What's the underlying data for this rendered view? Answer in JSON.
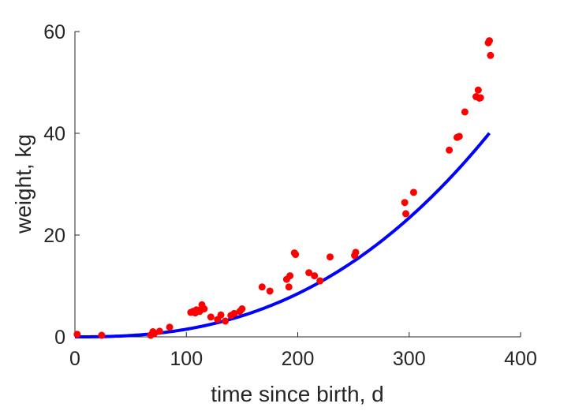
{
  "chart_data": {
    "type": "scatter",
    "title": "",
    "xlabel": "time since birth, d",
    "ylabel": "weight, kg",
    "xlim": [
      0,
      400
    ],
    "ylim": [
      0,
      60
    ],
    "xticks": [
      0,
      100,
      200,
      300,
      400
    ],
    "yticks": [
      0,
      20,
      40,
      60
    ],
    "grid": false,
    "colors": {
      "points": "#ff0000",
      "fit": "#0000ff",
      "axes": "#262626"
    },
    "fit": {
      "type": "power",
      "a": 1.5e-05,
      "b": 2.5,
      "x_range": [
        0,
        372
      ]
    },
    "series": [
      {
        "type": "scatter",
        "x": [
          2,
          24,
          68,
          69,
          70,
          71,
          76,
          85,
          104,
          106,
          108,
          109,
          111,
          112,
          114,
          116,
          122,
          128,
          131,
          135,
          140,
          143,
          148,
          150,
          168,
          175,
          190,
          192,
          193,
          197,
          198,
          210,
          215,
          220,
          229,
          251,
          252,
          296,
          297,
          304,
          336,
          343,
          345,
          350,
          360,
          362,
          363,
          364,
          371,
          372,
          373
        ],
        "y": [
          0.5,
          0.3,
          0.3,
          0.5,
          1.0,
          0.6,
          1.1,
          1.9,
          4.8,
          5.0,
          4.7,
          5.3,
          5.2,
          5.0,
          6.3,
          5.5,
          3.9,
          3.4,
          4.3,
          3.1,
          4.2,
          4.6,
          5.0,
          5.5,
          9.8,
          9.0,
          11.3,
          9.8,
          12.0,
          16.5,
          16.2,
          12.6,
          12.0,
          11.0,
          15.7,
          16.0,
          16.6,
          26.4,
          24.2,
          28.4,
          36.7,
          39.2,
          39.4,
          44.2,
          47.2,
          48.5,
          46.9,
          47.0,
          57.8,
          58.2,
          55.3
        ]
      }
    ]
  }
}
